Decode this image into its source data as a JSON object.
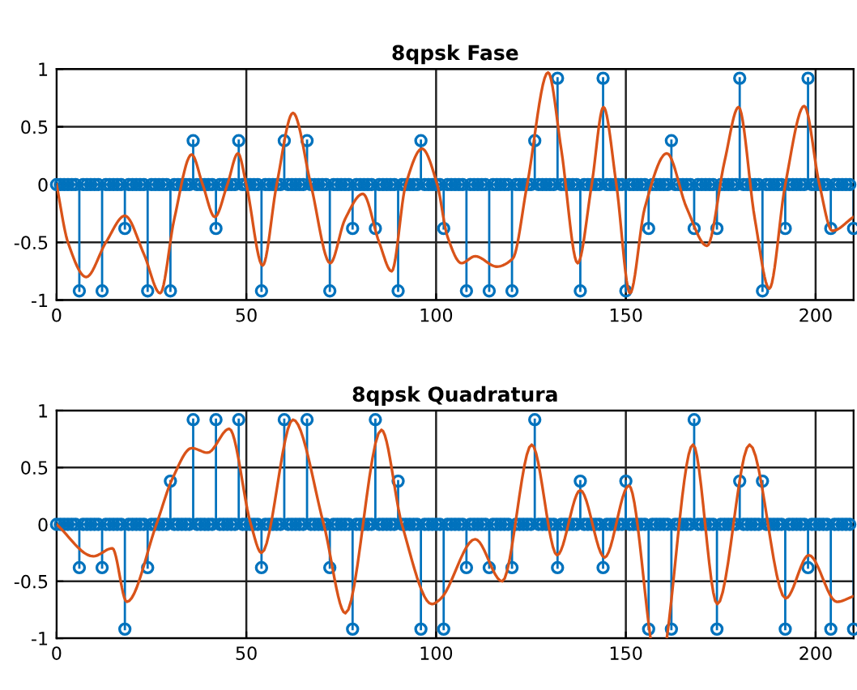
{
  "chart_data": [
    {
      "type": "lollipop",
      "title": "8qpsk Fase",
      "xlim": [
        0,
        210
      ],
      "ylim": [
        -1,
        1
      ],
      "xticks": [
        0,
        50,
        100,
        150,
        200
      ],
      "yticks": [
        -1,
        -0.5,
        0,
        0.5,
        1
      ],
      "grid": true,
      "ref_lines": [
        {
          "axis": "y",
          "value": 0,
          "color": "#0072bd"
        }
      ],
      "series": [
        {
          "marker": "circle",
          "color": "#0072bd",
          "x": [
            0,
            1,
            2,
            3,
            4,
            5,
            6,
            7,
            8,
            9,
            10,
            11,
            12,
            13,
            14,
            15,
            16,
            17,
            18,
            19,
            20,
            21,
            22,
            23,
            24,
            25,
            26,
            27,
            28,
            29,
            30,
            31,
            32,
            33,
            34,
            35,
            36,
            37,
            38,
            39,
            40,
            41,
            42,
            43,
            44,
            45,
            46,
            47,
            48,
            49,
            50,
            51,
            52,
            53,
            54,
            55,
            56,
            57,
            58,
            59,
            60,
            61,
            62,
            63,
            64,
            65,
            66,
            67,
            68,
            69,
            70,
            71,
            72,
            73,
            74,
            75,
            76,
            77,
            78,
            79,
            80,
            81,
            82,
            83,
            84,
            85,
            86,
            87,
            88,
            89,
            90,
            91,
            92,
            93,
            94,
            95,
            96,
            97,
            98,
            99,
            100,
            101,
            102,
            103,
            104,
            105,
            106,
            107,
            108,
            109,
            110,
            111,
            112,
            113,
            114,
            115,
            116,
            117,
            118,
            119,
            120,
            121,
            122,
            123,
            124,
            125,
            126,
            127,
            128,
            129,
            130,
            131,
            132,
            133,
            134,
            135,
            136,
            137,
            138,
            139,
            140,
            141,
            142,
            143,
            144,
            145,
            146,
            147,
            148,
            149,
            150,
            151,
            152,
            153,
            154,
            155,
            156,
            157,
            158,
            159,
            160,
            161,
            162,
            163,
            164,
            165,
            166,
            167,
            168,
            169,
            170,
            171,
            172,
            173,
            174,
            175,
            176,
            177,
            178,
            179,
            180,
            181,
            182,
            183,
            184,
            185,
            186,
            187,
            188,
            189,
            190,
            191,
            192,
            193,
            194,
            195,
            196,
            197,
            198,
            199,
            200,
            201,
            202,
            203,
            204,
            205,
            206,
            207,
            208,
            209,
            210
          ],
          "values": [
            0,
            0,
            0,
            0,
            0,
            0,
            -0.92,
            0,
            0,
            0,
            0,
            0,
            -0.92,
            0,
            0,
            0,
            0,
            0,
            -0.38,
            0,
            0,
            0,
            0,
            0,
            -0.92,
            0,
            0,
            0,
            0,
            0,
            -0.92,
            0,
            0,
            0,
            0,
            0,
            0.38,
            0,
            0,
            0,
            0,
            0,
            -0.38,
            0,
            0,
            0,
            0,
            0,
            0.38,
            0,
            0,
            0,
            0,
            0,
            -0.92,
            0,
            0,
            0,
            0,
            0,
            0.38,
            0,
            0,
            0,
            0,
            0,
            0.38,
            0,
            0,
            0,
            0,
            0,
            -0.92,
            0,
            0,
            0,
            0,
            0,
            -0.38,
            0,
            0,
            0,
            0,
            0,
            -0.38,
            0,
            0,
            0,
            0,
            0,
            -0.92,
            0,
            0,
            0,
            0,
            0,
            0.38,
            0,
            0,
            0,
            0,
            0,
            -0.38,
            0,
            0,
            0,
            0,
            0,
            -0.92,
            0,
            0,
            0,
            0,
            0,
            -0.92,
            0,
            0,
            0,
            0,
            0,
            -0.92,
            0,
            0,
            0,
            0,
            0,
            0.38,
            0,
            0,
            0,
            0,
            0,
            0.92,
            0,
            0,
            0,
            0,
            0,
            -0.92,
            0,
            0,
            0,
            0,
            0,
            0.92,
            0,
            0,
            0,
            0,
            0,
            -0.92,
            0,
            0,
            0,
            0,
            0,
            -0.38,
            0,
            0,
            0,
            0,
            0,
            0.38,
            0,
            0,
            0,
            0,
            0,
            -0.38,
            0,
            0,
            0,
            0,
            0,
            -0.38,
            0,
            0,
            0,
            0,
            0,
            0.92,
            0,
            0,
            0,
            0,
            0,
            -0.92,
            0,
            0,
            0,
            0,
            0,
            -0.38,
            0,
            0,
            0,
            0,
            0,
            0.92,
            0,
            0,
            0,
            0,
            0,
            -0.38,
            0,
            0,
            0,
            0,
            0,
            -0.38
          ]
        },
        {
          "type": "line",
          "color": "#d95319",
          "x": [
            0,
            3,
            7.8,
            13,
            18,
            23,
            27.3,
            31,
            35.6,
            38.5,
            41.7,
            45,
            47.8,
            50,
            54.3,
            58,
            62.3,
            67,
            72.1,
            76,
            80.7,
            85,
            88.3,
            92,
            96.3,
            100.3,
            103,
            106.7,
            110.3,
            116,
            120.2,
            124,
            129.5,
            133,
            137.3,
            141,
            144.1,
            147.5,
            151.1,
            155,
            160.8,
            166,
            171.4,
            176,
            179.7,
            184,
            187.8,
            192,
            197,
            201,
            204.4,
            210
          ],
          "values": [
            0,
            -0.5,
            -0.8,
            -0.5,
            -0.27,
            -0.6,
            -0.94,
            -0.3,
            0.26,
            0,
            -0.28,
            0,
            0.27,
            0,
            -0.7,
            0,
            0.62,
            0,
            -0.68,
            -0.3,
            -0.08,
            -0.5,
            -0.75,
            0,
            0.31,
            0,
            -0.45,
            -0.68,
            -0.62,
            -0.71,
            -0.64,
            0,
            0.97,
            0.3,
            -0.68,
            0,
            0.67,
            0,
            -0.94,
            -0.2,
            0.27,
            -0.2,
            -0.53,
            0.2,
            0.67,
            -0.3,
            -0.9,
            0,
            0.68,
            0,
            -0.4,
            -0.28
          ]
        }
      ]
    },
    {
      "type": "lollipop",
      "title": "8qpsk Quadratura",
      "xlim": [
        0,
        210
      ],
      "ylim": [
        -1,
        1
      ],
      "xticks": [
        0,
        50,
        100,
        150,
        200
      ],
      "yticks": [
        -1,
        -0.5,
        0,
        0.5,
        1
      ],
      "grid": true,
      "ref_lines": [
        {
          "axis": "y",
          "value": 0,
          "color": "#0072bd"
        }
      ],
      "series": [
        {
          "marker": "circle",
          "color": "#0072bd",
          "x": [
            0,
            1,
            2,
            3,
            4,
            5,
            6,
            7,
            8,
            9,
            10,
            11,
            12,
            13,
            14,
            15,
            16,
            17,
            18,
            19,
            20,
            21,
            22,
            23,
            24,
            25,
            26,
            27,
            28,
            29,
            30,
            31,
            32,
            33,
            34,
            35,
            36,
            37,
            38,
            39,
            40,
            41,
            42,
            43,
            44,
            45,
            46,
            47,
            48,
            49,
            50,
            51,
            52,
            53,
            54,
            55,
            56,
            57,
            58,
            59,
            60,
            61,
            62,
            63,
            64,
            65,
            66,
            67,
            68,
            69,
            70,
            71,
            72,
            73,
            74,
            75,
            76,
            77,
            78,
            79,
            80,
            81,
            82,
            83,
            84,
            85,
            86,
            87,
            88,
            89,
            90,
            91,
            92,
            93,
            94,
            95,
            96,
            97,
            98,
            99,
            100,
            101,
            102,
            103,
            104,
            105,
            106,
            107,
            108,
            109,
            110,
            111,
            112,
            113,
            114,
            115,
            116,
            117,
            118,
            119,
            120,
            121,
            122,
            123,
            124,
            125,
            126,
            127,
            128,
            129,
            130,
            131,
            132,
            133,
            134,
            135,
            136,
            137,
            138,
            139,
            140,
            141,
            142,
            143,
            144,
            145,
            146,
            147,
            148,
            149,
            150,
            151,
            152,
            153,
            154,
            155,
            156,
            157,
            158,
            159,
            160,
            161,
            162,
            163,
            164,
            165,
            166,
            167,
            168,
            169,
            170,
            171,
            172,
            173,
            174,
            175,
            176,
            177,
            178,
            179,
            180,
            181,
            182,
            183,
            184,
            185,
            186,
            187,
            188,
            189,
            190,
            191,
            192,
            193,
            194,
            195,
            196,
            197,
            198,
            199,
            200,
            201,
            202,
            203,
            204,
            205,
            206,
            207,
            208,
            209,
            210
          ],
          "values": [
            0,
            0,
            0,
            0,
            0,
            0,
            -0.38,
            0,
            0,
            0,
            0,
            0,
            -0.38,
            0,
            0,
            0,
            0,
            0,
            -0.92,
            0,
            0,
            0,
            0,
            0,
            -0.38,
            0,
            0,
            0,
            0,
            0,
            0.38,
            0,
            0,
            0,
            0,
            0,
            0.92,
            0,
            0,
            0,
            0,
            0,
            0.92,
            0,
            0,
            0,
            0,
            0,
            0.92,
            0,
            0,
            0,
            0,
            0,
            -0.38,
            0,
            0,
            0,
            0,
            0,
            0.92,
            0,
            0,
            0,
            0,
            0,
            0.92,
            0,
            0,
            0,
            0,
            0,
            -0.38,
            0,
            0,
            0,
            0,
            0,
            -0.92,
            0,
            0,
            0,
            0,
            0,
            0.92,
            0,
            0,
            0,
            0,
            0,
            0.38,
            0,
            0,
            0,
            0,
            0,
            -0.92,
            0,
            0,
            0,
            0,
            0,
            -0.92,
            0,
            0,
            0,
            0,
            0,
            -0.38,
            0,
            0,
            0,
            0,
            0,
            -0.38,
            0,
            0,
            0,
            0,
            0,
            -0.38,
            0,
            0,
            0,
            0,
            0,
            0.92,
            0,
            0,
            0,
            0,
            0,
            -0.38,
            0,
            0,
            0,
            0,
            0,
            0.38,
            0,
            0,
            0,
            0,
            0,
            -0.38,
            0,
            0,
            0,
            0,
            0,
            0.38,
            0,
            0,
            0,
            0,
            0,
            -0.92,
            0,
            0,
            0,
            0,
            0,
            -0.92,
            0,
            0,
            0,
            0,
            0,
            0.92,
            0,
            0,
            0,
            0,
            0,
            -0.92,
            0,
            0,
            0,
            0,
            0,
            0.38,
            0,
            0,
            0,
            0,
            0,
            0.38,
            0,
            0,
            0,
            0,
            0,
            -0.92,
            0,
            0,
            0,
            0,
            0,
            -0.38,
            0,
            0,
            0,
            0,
            0,
            -0.92,
            0,
            0,
            0,
            0,
            0,
            -0.92
          ]
        },
        {
          "type": "line",
          "color": "#d95319",
          "x": [
            0,
            9.7,
            14.7,
            18.5,
            26.3,
            30.5,
            35.6,
            39.8,
            45.5,
            51.2,
            54,
            62.3,
            70.4,
            76.1,
            85.6,
            91,
            98.9,
            101,
            110.3,
            117.4,
            125.2,
            131.9,
            138,
            144.4,
            150.8,
            156.5,
            158.6,
            160.8,
            167.7,
            174.1,
            182.6,
            192.1,
            198.2,
            205.6,
            210
          ],
          "values": [
            0,
            -0.28,
            -0.21,
            -0.68,
            0,
            0.4,
            0.67,
            0.63,
            0.84,
            0,
            -0.25,
            0.92,
            0,
            -0.78,
            0.83,
            0,
            -0.7,
            -0.66,
            -0.13,
            -0.5,
            0.7,
            -0.27,
            0.3,
            -0.29,
            0.34,
            -1,
            null,
            -1,
            0.7,
            -0.7,
            0.7,
            -0.65,
            -0.27,
            -0.68,
            -0.63
          ]
        }
      ]
    }
  ]
}
